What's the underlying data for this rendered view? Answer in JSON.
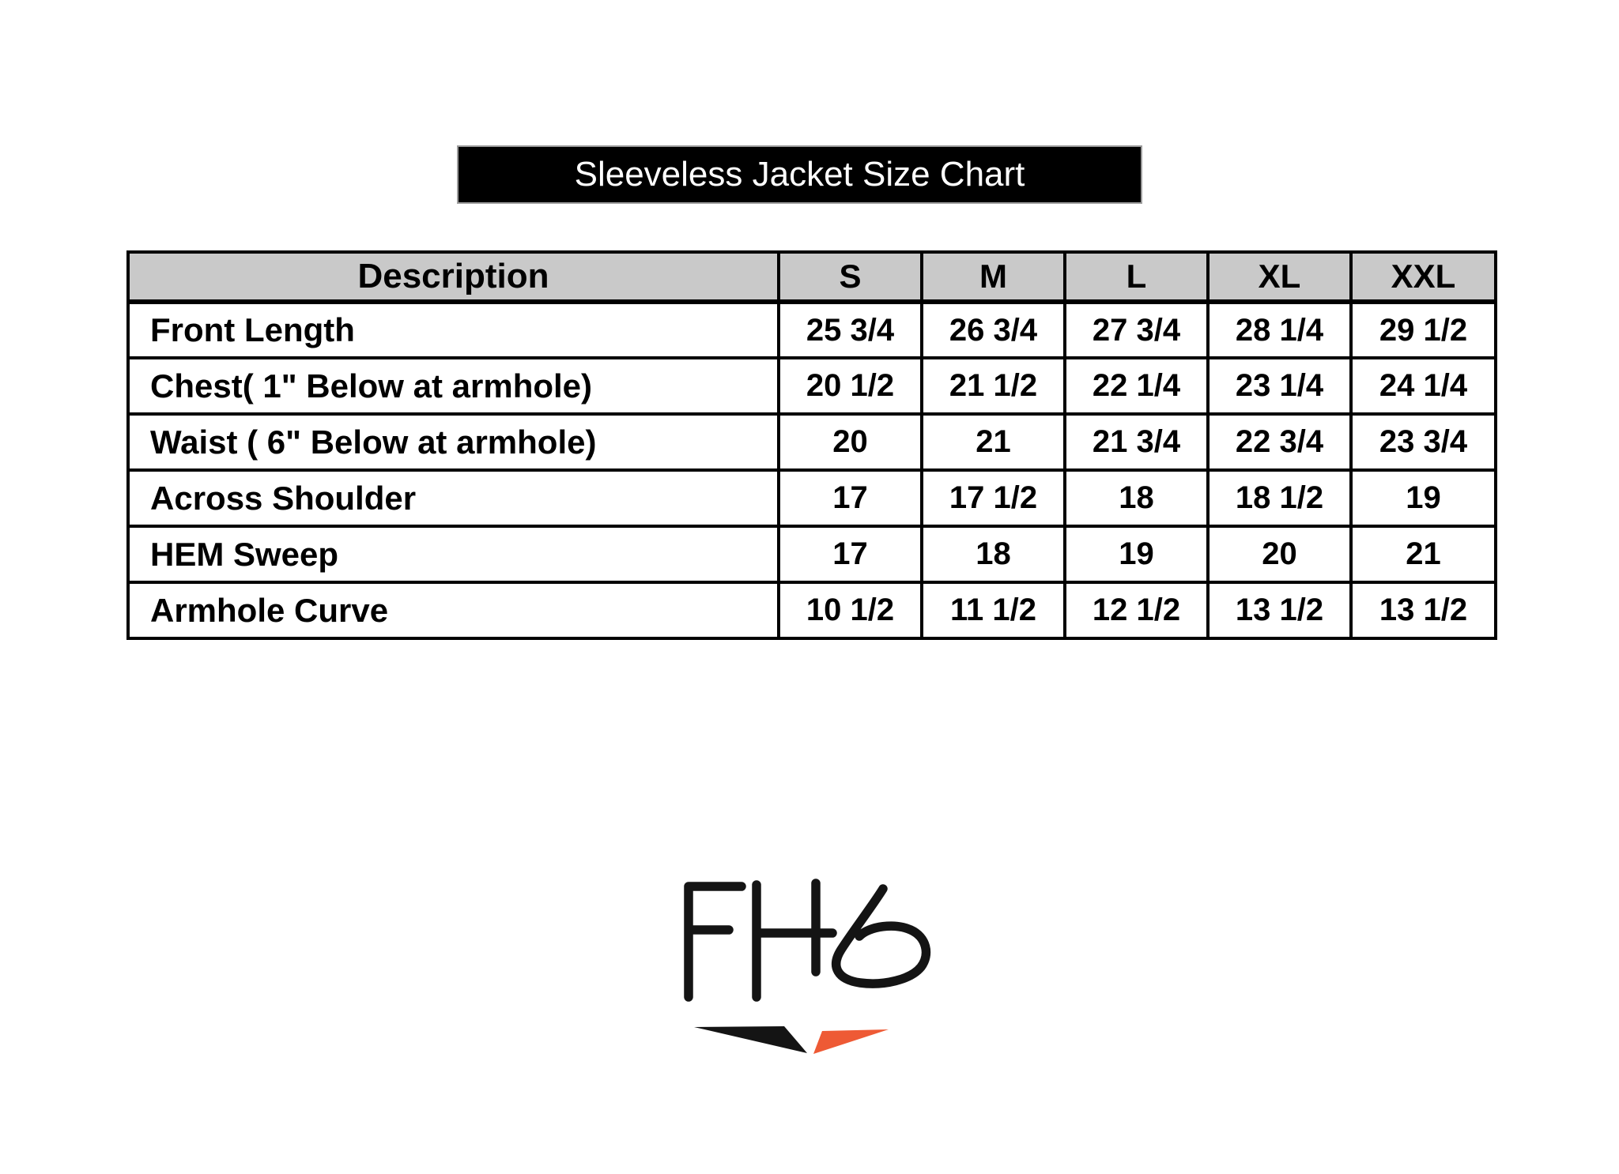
{
  "title": {
    "text": "Sleeveless Jacket Size Chart"
  },
  "table": {
    "columns": [
      "Description",
      "S",
      "M",
      "L",
      "XL",
      "XXL"
    ],
    "rows": [
      {
        "label": "Front Length",
        "values": [
          "25 3/4",
          "26 3/4",
          "27 3/4",
          "28 1/4",
          "29 1/2"
        ]
      },
      {
        "label": "Chest( 1\" Below at armhole)",
        "values": [
          "20 1/2",
          "21 1/2",
          "22 1/4",
          "23 1/4",
          "24 1/4"
        ]
      },
      {
        "label": "Waist ( 6\" Below at armhole)",
        "values": [
          "20",
          "21",
          "21 3/4",
          "22 3/4",
          "23 3/4"
        ]
      },
      {
        "label": "Across Shoulder",
        "values": [
          "17",
          "17 1/2",
          "18",
          "18 1/2",
          "19"
        ]
      },
      {
        "label": "HEM Sweep",
        "values": [
          "17",
          "18",
          "19",
          "20",
          "21"
        ]
      },
      {
        "label": "Armhole Curve",
        "values": [
          "10 1/2",
          "11 1/2",
          "12 1/2",
          "13 1/2",
          "13 1/2"
        ]
      }
    ]
  },
  "logo": {
    "text": "FHS",
    "colors": {
      "mark_black": "#141414",
      "mark_orange": "#ee5a35"
    }
  },
  "colors": {
    "title_bg": "#000000",
    "title_fg": "#ffffff",
    "header_bg": "#c9c9c9",
    "table_border": "#000000"
  },
  "chart_data": {
    "type": "table",
    "title": "Sleeveless Jacket Size Chart",
    "columns": [
      "Description",
      "S",
      "M",
      "L",
      "XL",
      "XXL"
    ],
    "rows": [
      [
        "Front Length",
        "25 3/4",
        "26 3/4",
        "27 3/4",
        "28 1/4",
        "29 1/2"
      ],
      [
        "Chest( 1\" Below at armhole)",
        "20 1/2",
        "21 1/2",
        "22 1/4",
        "23 1/4",
        "24 1/4"
      ],
      [
        "Waist ( 6\" Below at armhole)",
        "20",
        "21",
        "21 3/4",
        "22 3/4",
        "23 3/4"
      ],
      [
        "Across Shoulder",
        "17",
        "17 1/2",
        "18",
        "18 1/2",
        "19"
      ],
      [
        "HEM Sweep",
        "17",
        "18",
        "19",
        "20",
        "21"
      ],
      [
        "Armhole Curve",
        "10 1/2",
        "11 1/2",
        "12 1/2",
        "13 1/2",
        "13 1/2"
      ]
    ]
  }
}
